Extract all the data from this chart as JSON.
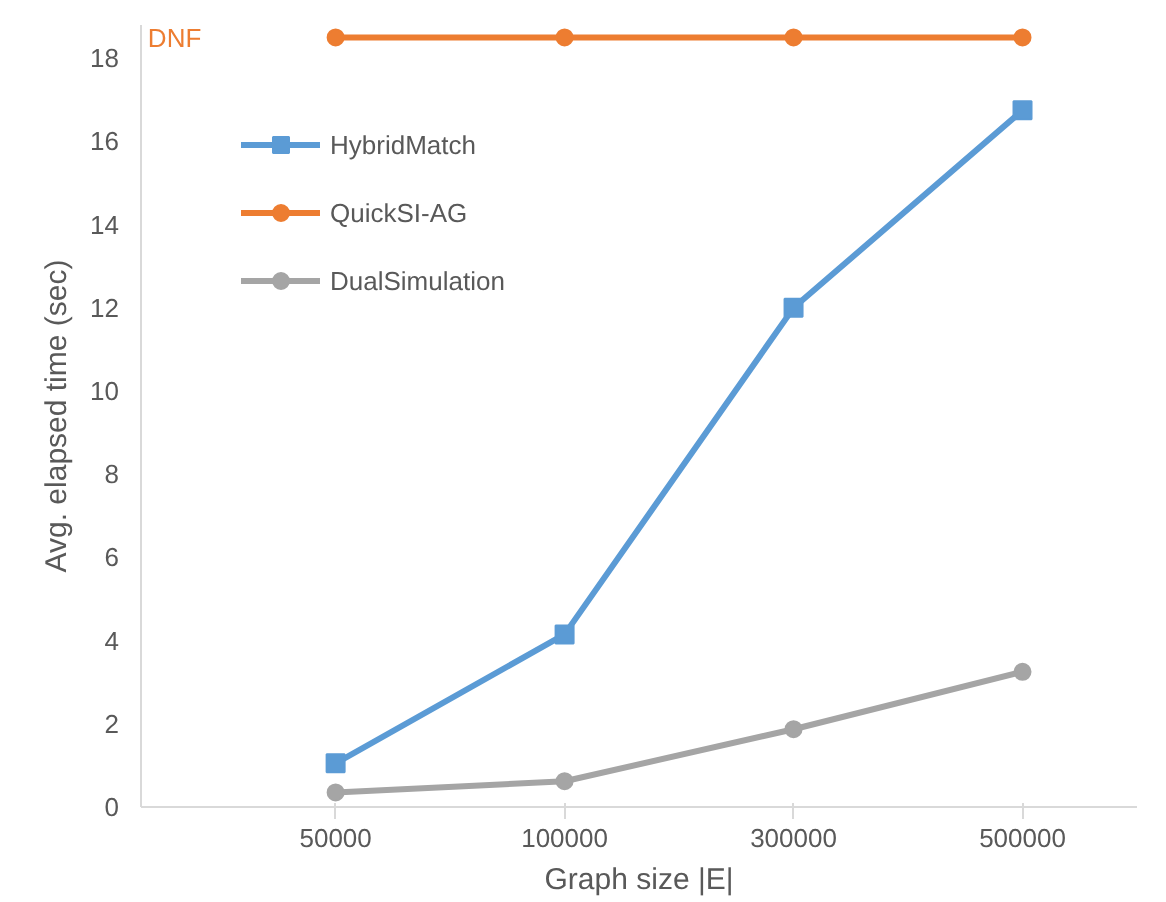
{
  "chart_data": {
    "type": "line",
    "xlabel": "Graph size |E|",
    "ylabel": "Avg. elapsed time (sec)",
    "categories": [
      "50000",
      "100000",
      "300000",
      "500000"
    ],
    "ylim": [
      0,
      18.8
    ],
    "yticks": [
      0,
      2,
      4,
      6,
      8,
      10,
      12,
      14,
      16,
      18
    ],
    "grid": false,
    "legend": "top left",
    "series": [
      {
        "name": "HybridMatch",
        "color": "#5b9bd5",
        "marker": "square",
        "values": [
          1.05,
          4.15,
          12.0,
          16.75
        ]
      },
      {
        "name": "QuickSI-AG",
        "color": "#ed7d31",
        "marker": "circle",
        "values": [
          18.5,
          18.5,
          18.5,
          18.5
        ]
      },
      {
        "name": "DualSimulation",
        "color": "#a5a5a5",
        "marker": "circle",
        "values": [
          0.35,
          0.62,
          1.87,
          3.25
        ]
      }
    ],
    "annotations": [
      "DNF"
    ]
  }
}
